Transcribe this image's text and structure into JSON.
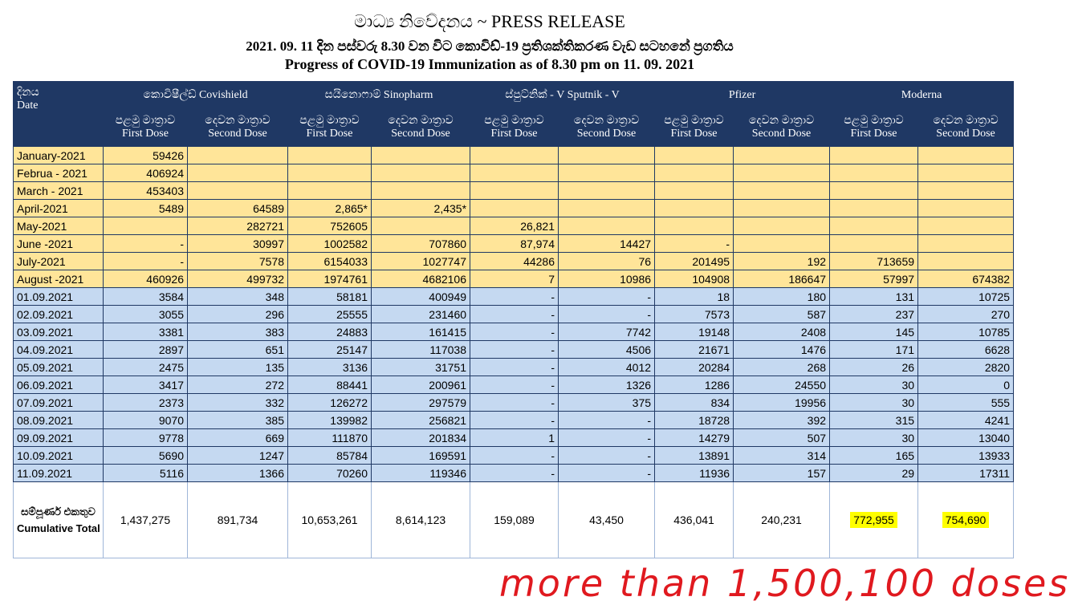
{
  "header": {
    "title": "මාධ්‍ය නිවේදනය ~ PRESS RELEASE",
    "subtitle": "2021. 09. 11 දින පස්වරු 8.30 වන විට කොවිඩ්-19 ප්‍රතිශක්තිකරණ වැඩ සටහනේ ප්‍රගතිය",
    "heading": "Progress of COVID-19 Immunization as of 8.30 pm on 11. 09. 2021"
  },
  "table": {
    "date_header": [
      "දිනය",
      "Date"
    ],
    "vaccines": [
      "කොවිෂීල්ඩ් Covishield",
      "සයිනොෆාම් Sinopharm",
      "ස්පුට්නික් - V   Sputnik - V",
      "Pfizer",
      "Moderna"
    ],
    "doses": [
      [
        "පළමු මාත්‍රාව",
        "First Dose"
      ],
      [
        "දෙවන මාත්‍රාව",
        "Second Dose"
      ]
    ],
    "rows": [
      [
        "January-2021",
        "59426",
        null,
        null,
        null,
        null,
        null,
        null,
        null,
        null,
        null
      ],
      [
        "Februa - 2021",
        "406924",
        null,
        null,
        null,
        null,
        null,
        null,
        null,
        null,
        null
      ],
      [
        "March - 2021",
        "453403",
        null,
        null,
        null,
        null,
        null,
        null,
        null,
        null,
        null
      ],
      [
        "April-2021",
        "5489",
        "64589",
        "2,865*",
        "2,435*",
        null,
        null,
        null,
        null,
        null,
        null
      ],
      [
        "May-2021",
        null,
        "282721",
        "752605",
        null,
        "26,821",
        null,
        null,
        null,
        null,
        null
      ],
      [
        "June -2021",
        "-",
        "30997",
        "1002582",
        "707860",
        "87,974",
        "14427",
        "-",
        null,
        null,
        null
      ],
      [
        "July-2021",
        "-",
        "7578",
        "6154033",
        "1027747",
        "44286",
        "76",
        "201495",
        "192",
        "713659",
        null
      ],
      [
        "August -2021",
        "460926",
        "499732",
        "1974761",
        "4682106",
        "7",
        "10986",
        "104908",
        "186647",
        "57997",
        "674382"
      ],
      [
        "01.09.2021",
        "3584",
        "348",
        "58181",
        "400949",
        "-",
        "-",
        "18",
        "180",
        "131",
        "10725"
      ],
      [
        "02.09.2021",
        "3055",
        "296",
        "25555",
        "231460",
        "-",
        "-",
        "7573",
        "587",
        "237",
        "270"
      ],
      [
        "03.09.2021",
        "3381",
        "383",
        "24883",
        "161415",
        "-",
        "7742",
        "19148",
        "2408",
        "145",
        "10785"
      ],
      [
        "04.09.2021",
        "2897",
        "651",
        "25147",
        "117038",
        "-",
        "4506",
        "21671",
        "1476",
        "171",
        "6628"
      ],
      [
        "05.09.2021",
        "2475",
        "135",
        "3136",
        "31751",
        "-",
        "4012",
        "20284",
        "268",
        "26",
        "2820"
      ],
      [
        "06.09.2021",
        "3417",
        "272",
        "88441",
        "200961",
        "-",
        "1326",
        "1286",
        "24550",
        "30",
        "0"
      ],
      [
        "07.09.2021",
        "2373",
        "332",
        "126272",
        "297579",
        "-",
        "375",
        "834",
        "19956",
        "30",
        "555"
      ],
      [
        "08.09.2021",
        "9070",
        "385",
        "139982",
        "256821",
        "-",
        "-",
        "18728",
        "392",
        "315",
        "4241"
      ],
      [
        "09.09.2021",
        "9778",
        "669",
        "111870",
        "201834",
        "1",
        "-",
        "14279",
        "507",
        "30",
        "13040"
      ],
      [
        "10.09.2021",
        "5690",
        "1247",
        "85784",
        "169591",
        "-",
        "-",
        "13891",
        "314",
        "165",
        "13933"
      ],
      [
        "11.09.2021",
        "5116",
        "1366",
        "70260",
        "119346",
        "-",
        "-",
        "11936",
        "157",
        "29",
        "17311"
      ]
    ],
    "total_label": [
      "සම්පූර්ණ එකතුව",
      "Cumulative Total"
    ],
    "totals": [
      "1,437,275",
      "891,734",
      "10,653,261",
      "8,614,123",
      "159,089",
      "43,450",
      "436,041",
      "240,231",
      "772,955",
      "754,690"
    ]
  },
  "annotation": "more than 1,500,100 doses"
}
